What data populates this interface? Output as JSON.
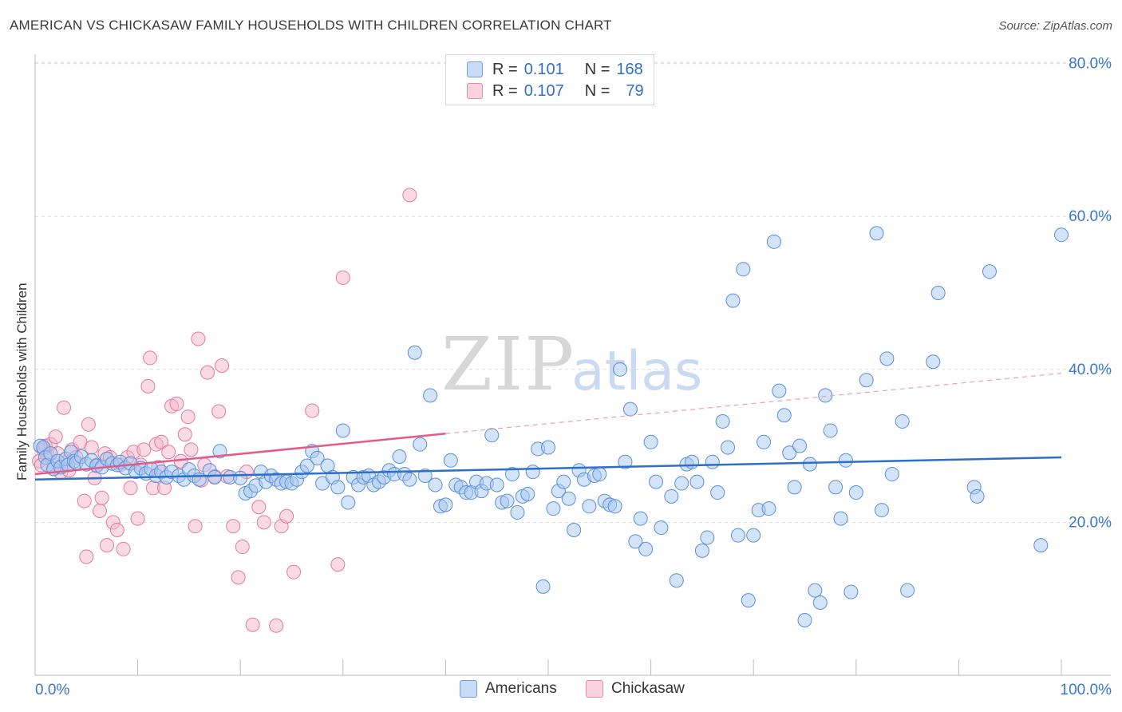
{
  "title": "AMERICAN VS CHICKASAW FAMILY HOUSEHOLDS WITH CHILDREN CORRELATION CHART",
  "source": "Source: ZipAtlas.com",
  "watermark": {
    "zip": "ZIP",
    "atlas": "atlas"
  },
  "legend": {
    "rows": [
      {
        "r_label": "R =",
        "r_value": "0.101",
        "n_label": "N =",
        "n_value": "168",
        "color": "#a7c7f2"
      },
      {
        "r_label": "R =",
        "r_value": "0.107",
        "n_label": "N =",
        "n_value": "79",
        "color": "#f6b6ca"
      }
    ]
  },
  "bottom_legend": [
    {
      "label": "Americans",
      "color": "#a7c7f2"
    },
    {
      "label": "Chickasaw",
      "color": "#f6b6ca"
    }
  ],
  "chart_data": {
    "type": "scatter",
    "title": "AMERICAN VS CHICKASAW FAMILY HOUSEHOLDS WITH CHILDREN CORRELATION CHART",
    "xlabel": "",
    "ylabel": "Family Households with Children",
    "xlim": [
      0,
      100
    ],
    "ylim": [
      0,
      83
    ],
    "x_tick_labels": [
      "0.0%",
      "100.0%"
    ],
    "y_ticks": [
      20,
      40,
      60,
      80
    ],
    "y_tick_labels": [
      "20.0%",
      "40.0%",
      "60.0%",
      "80.0%"
    ],
    "grid": true,
    "legend_position": "top-center",
    "series": [
      {
        "name": "Americans",
        "color": "#a7c7f2",
        "stroke": "#5a8fd8",
        "trend": {
          "x": [
            0,
            100
          ],
          "y": [
            25.6,
            28.5
          ],
          "color": "#2e6fc9"
        },
        "points": [
          [
            0.5,
            30.0
          ],
          [
            0.8,
            29.8
          ],
          [
            1.0,
            28.5
          ],
          [
            1.2,
            27.5
          ],
          [
            1.5,
            29.0
          ],
          [
            1.8,
            27.0
          ],
          [
            2.2,
            28.0
          ],
          [
            2.5,
            27.2
          ],
          [
            3.0,
            28.3
          ],
          [
            3.2,
            27.5
          ],
          [
            3.5,
            29.2
          ],
          [
            3.8,
            28.0
          ],
          [
            4.0,
            27.8
          ],
          [
            4.5,
            28.6
          ],
          [
            5.0,
            27.6
          ],
          [
            5.5,
            28.1
          ],
          [
            6.0,
            27.4
          ],
          [
            6.5,
            27.2
          ],
          [
            7.0,
            28.3
          ],
          [
            7.5,
            27.7
          ],
          [
            8.0,
            27.5
          ],
          [
            8.3,
            27.9
          ],
          [
            8.8,
            27.1
          ],
          [
            9.3,
            27.7
          ],
          [
            9.8,
            26.6
          ],
          [
            10.3,
            27.1
          ],
          [
            10.8,
            26.4
          ],
          [
            11.3,
            27.0
          ],
          [
            11.8,
            26.1
          ],
          [
            12.3,
            26.6
          ],
          [
            12.8,
            25.9
          ],
          [
            13.3,
            26.6
          ],
          [
            14.0,
            26.1
          ],
          [
            14.5,
            25.6
          ],
          [
            15.0,
            26.9
          ],
          [
            15.5,
            26.1
          ],
          [
            16.0,
            25.6
          ],
          [
            17.0,
            26.8
          ],
          [
            17.5,
            25.9
          ],
          [
            18.0,
            29.3
          ],
          [
            19.0,
            25.9
          ],
          [
            20.0,
            25.8
          ],
          [
            20.5,
            23.8
          ],
          [
            21.0,
            24.1
          ],
          [
            21.5,
            24.8
          ],
          [
            22.0,
            26.6
          ],
          [
            22.5,
            25.3
          ],
          [
            23.0,
            26.1
          ],
          [
            23.5,
            25.6
          ],
          [
            24.0,
            25.1
          ],
          [
            24.5,
            25.3
          ],
          [
            25.0,
            25.1
          ],
          [
            25.5,
            25.6
          ],
          [
            26.0,
            26.6
          ],
          [
            26.5,
            27.4
          ],
          [
            27.0,
            29.3
          ],
          [
            27.5,
            28.4
          ],
          [
            28.0,
            25.1
          ],
          [
            28.5,
            27.4
          ],
          [
            29.0,
            25.9
          ],
          [
            29.5,
            24.6
          ],
          [
            30.0,
            32.0
          ],
          [
            30.5,
            22.6
          ],
          [
            31.0,
            25.9
          ],
          [
            31.5,
            24.9
          ],
          [
            32.0,
            25.9
          ],
          [
            32.5,
            26.1
          ],
          [
            33.0,
            24.9
          ],
          [
            33.5,
            25.3
          ],
          [
            34.0,
            25.9
          ],
          [
            34.5,
            26.8
          ],
          [
            35.0,
            26.3
          ],
          [
            35.5,
            28.6
          ],
          [
            36.0,
            26.3
          ],
          [
            36.5,
            25.6
          ],
          [
            37.0,
            42.2
          ],
          [
            37.5,
            30.2
          ],
          [
            38.0,
            26.1
          ],
          [
            38.5,
            36.6
          ],
          [
            39.0,
            24.9
          ],
          [
            39.5,
            22.1
          ],
          [
            40.0,
            22.3
          ],
          [
            40.5,
            28.1
          ],
          [
            41.0,
            24.9
          ],
          [
            41.5,
            24.6
          ],
          [
            42.0,
            23.9
          ],
          [
            42.5,
            23.9
          ],
          [
            43.0,
            25.3
          ],
          [
            43.5,
            24.1
          ],
          [
            44.0,
            25.1
          ],
          [
            44.5,
            31.4
          ],
          [
            45.0,
            24.9
          ],
          [
            45.5,
            22.6
          ],
          [
            46.0,
            22.8
          ],
          [
            46.5,
            26.3
          ],
          [
            47.0,
            21.3
          ],
          [
            47.5,
            23.4
          ],
          [
            48.0,
            23.7
          ],
          [
            48.5,
            26.6
          ],
          [
            49.0,
            29.6
          ],
          [
            49.5,
            11.6
          ],
          [
            50.0,
            29.8
          ],
          [
            50.5,
            21.8
          ],
          [
            51.0,
            24.1
          ],
          [
            51.5,
            25.3
          ],
          [
            52.0,
            23.1
          ],
          [
            52.5,
            19.0
          ],
          [
            53.0,
            26.8
          ],
          [
            53.5,
            25.6
          ],
          [
            54.0,
            22.1
          ],
          [
            54.5,
            26.1
          ],
          [
            55.0,
            26.3
          ],
          [
            55.5,
            22.8
          ],
          [
            56.0,
            22.3
          ],
          [
            56.5,
            22.1
          ],
          [
            57.0,
            40.0
          ],
          [
            57.5,
            27.9
          ],
          [
            58.0,
            34.8
          ],
          [
            58.5,
            17.5
          ],
          [
            59.0,
            20.5
          ],
          [
            59.5,
            16.5
          ],
          [
            60.0,
            30.5
          ],
          [
            60.5,
            25.3
          ],
          [
            61.0,
            19.3
          ],
          [
            62.0,
            23.4
          ],
          [
            62.5,
            12.4
          ],
          [
            63.0,
            25.1
          ],
          [
            63.5,
            27.6
          ],
          [
            64.0,
            27.9
          ],
          [
            64.5,
            25.3
          ],
          [
            65.0,
            16.3
          ],
          [
            65.5,
            18.0
          ],
          [
            66.0,
            27.9
          ],
          [
            66.5,
            23.9
          ],
          [
            67.0,
            33.2
          ],
          [
            67.5,
            29.8
          ],
          [
            68.0,
            49.0
          ],
          [
            68.5,
            18.3
          ],
          [
            69.0,
            53.1
          ],
          [
            69.5,
            9.8
          ],
          [
            70.0,
            18.3
          ],
          [
            70.5,
            21.6
          ],
          [
            71.0,
            30.5
          ],
          [
            71.5,
            21.8
          ],
          [
            72.0,
            56.7
          ],
          [
            72.5,
            37.2
          ],
          [
            73.0,
            34.0
          ],
          [
            73.5,
            29.1
          ],
          [
            74.0,
            24.6
          ],
          [
            74.5,
            30.0
          ],
          [
            75.0,
            7.2
          ],
          [
            75.5,
            27.6
          ],
          [
            76.0,
            11.1
          ],
          [
            76.5,
            9.5
          ],
          [
            77.0,
            36.6
          ],
          [
            77.5,
            32.0
          ],
          [
            78.0,
            24.6
          ],
          [
            78.5,
            20.5
          ],
          [
            79.0,
            28.1
          ],
          [
            79.5,
            10.9
          ],
          [
            80.0,
            23.9
          ],
          [
            81.0,
            38.6
          ],
          [
            82.0,
            57.8
          ],
          [
            82.5,
            21.6
          ],
          [
            83.0,
            41.4
          ],
          [
            83.5,
            26.3
          ],
          [
            84.5,
            33.2
          ],
          [
            85.0,
            11.1
          ],
          [
            87.5,
            41.0
          ],
          [
            88.0,
            50.0
          ],
          [
            91.5,
            24.6
          ],
          [
            91.8,
            23.4
          ],
          [
            93.0,
            52.8
          ],
          [
            98.0,
            17.0
          ],
          [
            100.0,
            57.6
          ]
        ]
      },
      {
        "name": "Chickasaw",
        "color": "#f6b6ca",
        "stroke": "#e17b9c",
        "trend": {
          "x": [
            0,
            40
          ],
          "y": [
            26.3,
            31.6
          ],
          "color": "#e15c8a"
        },
        "trend_extended": {
          "x": [
            40,
            100
          ],
          "y": [
            31.6,
            39.5
          ],
          "color": "#e8a0b8"
        },
        "points": [
          [
            0.4,
            28.0
          ],
          [
            0.6,
            27.5
          ],
          [
            0.8,
            29.5
          ],
          [
            1.0,
            30.0
          ],
          [
            1.2,
            28.8
          ],
          [
            1.5,
            30.2
          ],
          [
            1.8,
            27.0
          ],
          [
            2.0,
            31.2
          ],
          [
            2.2,
            29.0
          ],
          [
            2.5,
            26.5
          ],
          [
            2.8,
            35.0
          ],
          [
            3.0,
            27.8
          ],
          [
            3.3,
            26.8
          ],
          [
            3.6,
            29.5
          ],
          [
            4.0,
            28.5
          ],
          [
            4.4,
            30.5
          ],
          [
            4.8,
            22.8
          ],
          [
            5.0,
            15.5
          ],
          [
            5.2,
            32.8
          ],
          [
            5.5,
            29.8
          ],
          [
            5.8,
            25.8
          ],
          [
            6.0,
            27.5
          ],
          [
            6.3,
            21.5
          ],
          [
            6.5,
            23.2
          ],
          [
            6.8,
            29.0
          ],
          [
            7.0,
            17.0
          ],
          [
            7.3,
            28.5
          ],
          [
            7.6,
            20.0
          ],
          [
            8.0,
            19.0
          ],
          [
            8.3,
            27.5
          ],
          [
            8.6,
            16.5
          ],
          [
            9.0,
            28.5
          ],
          [
            9.3,
            24.5
          ],
          [
            9.6,
            29.2
          ],
          [
            10.0,
            20.5
          ],
          [
            10.3,
            27.5
          ],
          [
            10.6,
            29.5
          ],
          [
            11.0,
            37.8
          ],
          [
            11.2,
            41.5
          ],
          [
            11.5,
            24.5
          ],
          [
            11.8,
            30.2
          ],
          [
            12.0,
            27.2
          ],
          [
            12.3,
            30.5
          ],
          [
            12.6,
            24.5
          ],
          [
            13.0,
            29.2
          ],
          [
            13.3,
            35.2
          ],
          [
            13.8,
            35.5
          ],
          [
            14.2,
            28.0
          ],
          [
            14.6,
            31.5
          ],
          [
            14.9,
            33.8
          ],
          [
            15.2,
            29.5
          ],
          [
            15.6,
            19.5
          ],
          [
            15.9,
            44.0
          ],
          [
            16.2,
            25.5
          ],
          [
            16.5,
            27.5
          ],
          [
            16.8,
            39.6
          ],
          [
            17.5,
            26.0
          ],
          [
            17.9,
            34.5
          ],
          [
            18.2,
            40.5
          ],
          [
            18.7,
            26.0
          ],
          [
            19.3,
            19.5
          ],
          [
            19.8,
            12.8
          ],
          [
            20.2,
            16.8
          ],
          [
            20.6,
            26.6
          ],
          [
            21.2,
            6.6
          ],
          [
            21.8,
            22.0
          ],
          [
            22.3,
            20.0
          ],
          [
            23.5,
            6.5
          ],
          [
            24.0,
            19.5
          ],
          [
            24.5,
            20.8
          ],
          [
            25.2,
            13.5
          ],
          [
            27.0,
            34.6
          ],
          [
            29.5,
            14.5
          ],
          [
            30.0,
            52.0
          ],
          [
            36.5,
            62.8
          ]
        ]
      }
    ]
  }
}
